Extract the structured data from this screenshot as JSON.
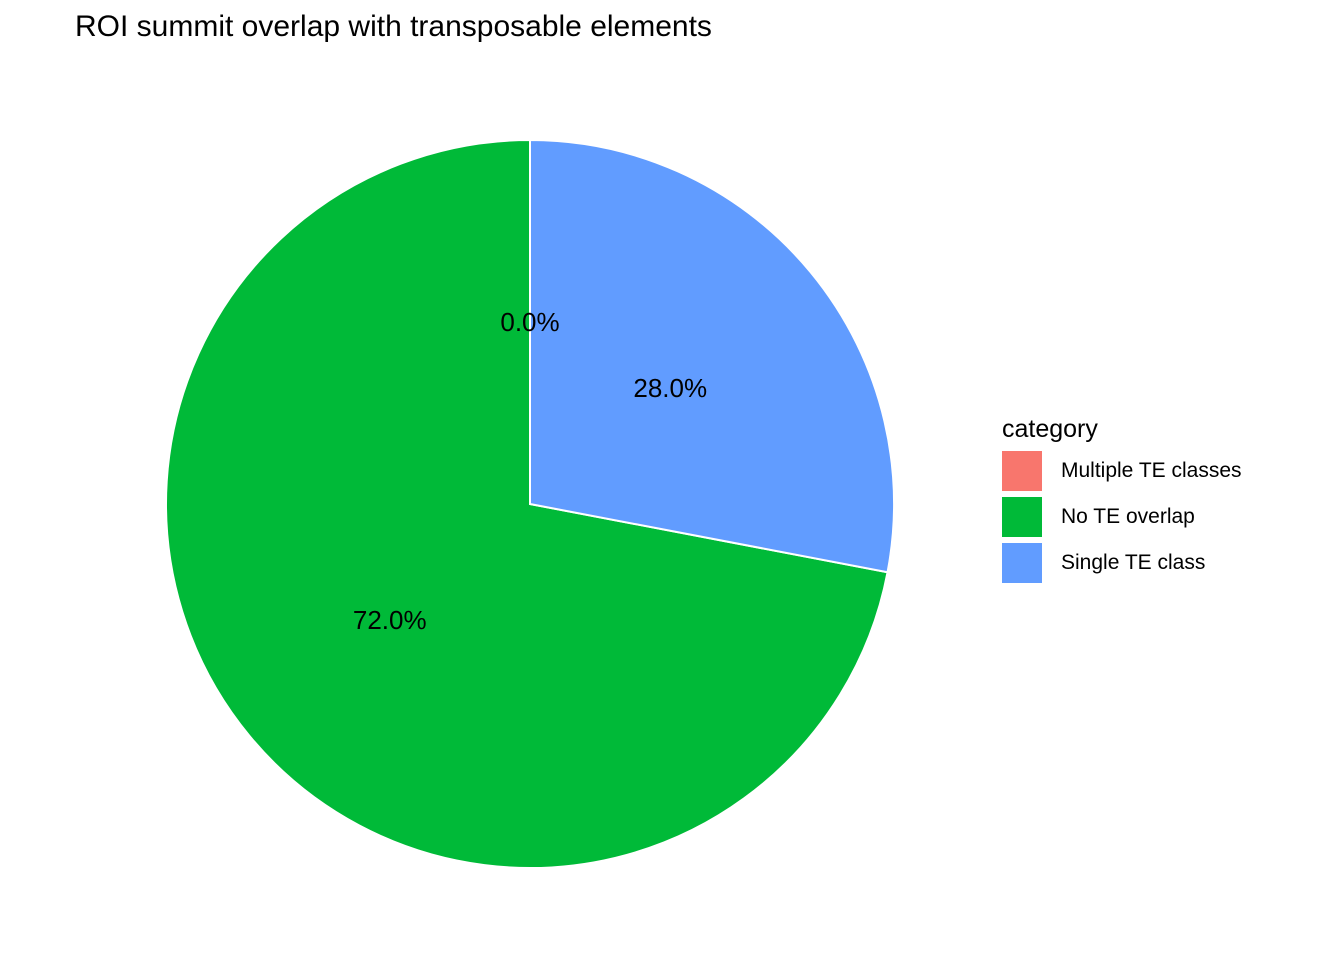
{
  "chart_data": {
    "type": "pie",
    "title": "ROI summit overlap with transposable elements",
    "legend_title": "category",
    "legend_position": "right",
    "slices": [
      {
        "category": "Multiple TE classes",
        "value": 0.0,
        "label": "0.0%",
        "color": "#F8766D"
      },
      {
        "category": "No TE overlap",
        "value": 72.0,
        "label": "72.0%",
        "color": "#00BA38"
      },
      {
        "category": "Single TE class",
        "value": 28.0,
        "label": "28.0%",
        "color": "#619CFF"
      }
    ]
  }
}
